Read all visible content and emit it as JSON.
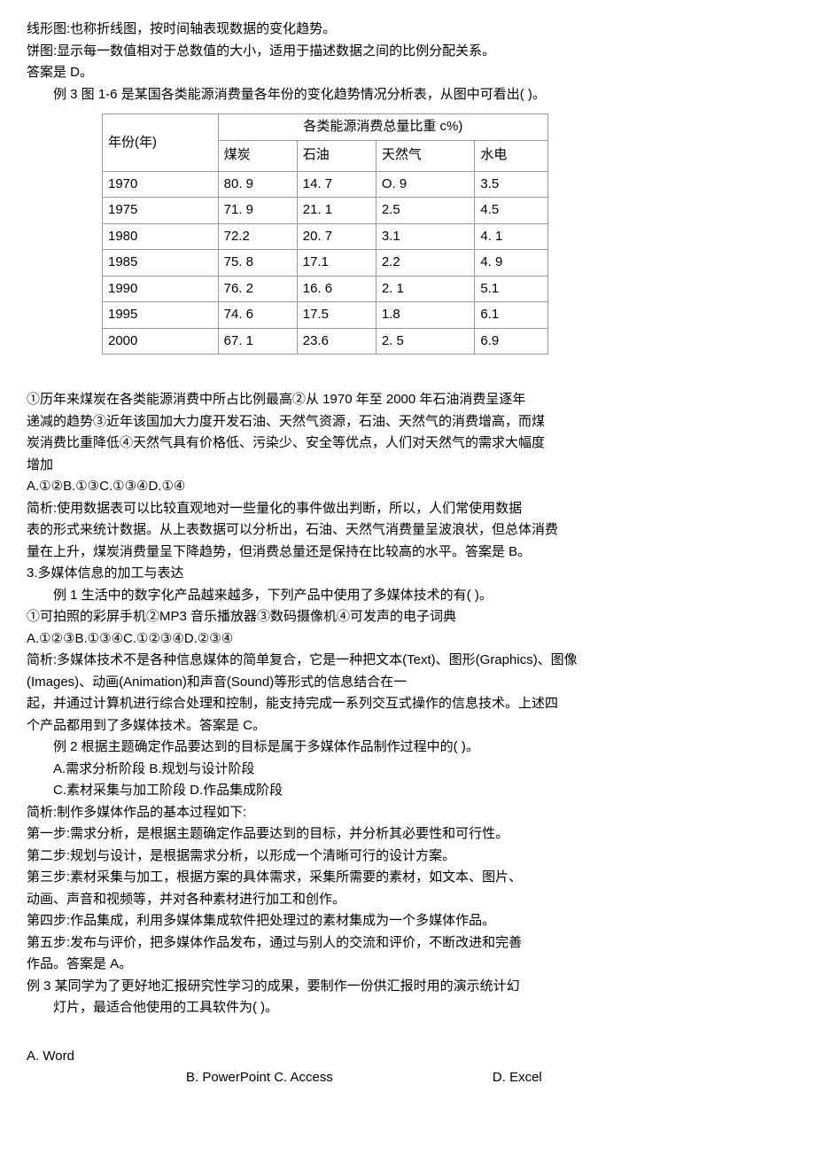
{
  "intro": {
    "line1": "线形图:也称折线图，按时间轴表现数据的变化趋势。",
    "line2": "饼图:显示每一数值相对于总数值的大小，适用于描述数据之间的比例分配关系。",
    "line3": "答案是 D。",
    "example3": "例 3 图 1-6 是某国各类能源消费量各年份的变化趋势情况分析表，从图中可看出(    )。"
  },
  "table": {
    "col1_header": "年份(年)",
    "merged_header": "各类能源消费总量比重 c%)",
    "subheaders": [
      "煤炭",
      "石油",
      "天然气",
      "水电"
    ],
    "rows": [
      {
        "year": "1970",
        "coal": "80. 9",
        "oil": "14. 7",
        "gas": "O. 9",
        "hydro": "3.5"
      },
      {
        "year": "1975",
        "coal": "71. 9",
        "oil": "21. 1",
        "gas": "2.5",
        "hydro": "4.5"
      },
      {
        "year": "1980",
        "coal": "72.2",
        "oil": "20. 7",
        "gas": "3.1",
        "hydro": "4. 1"
      },
      {
        "year": "1985",
        "coal": "75. 8",
        "oil": "17.1",
        "gas": "2.2",
        "hydro": "4. 9"
      },
      {
        "year": "1990",
        "coal": "76. 2",
        "oil": "16. 6",
        "gas": "2. 1",
        "hydro": "5.1"
      },
      {
        "year": "1995",
        "coal": "74. 6",
        "oil": "17.5",
        "gas": "1.8",
        "hydro": "6.1"
      },
      {
        "year": "2000",
        "coal": "67. 1",
        "oil": "23.6",
        "gas": "2. 5",
        "hydro": "6.9"
      }
    ]
  },
  "analysis1": {
    "line1": "①历年来煤炭在各类能源消费中所占比例最高②从 1970 年至 2000 年石油消费呈逐年",
    "line2": "递减的趋势③近年该国加大力度开发石油、天然气资源，石油、天然气的消费增高，而煤",
    "line3": "炭消费比重降低④天然气具有价格低、污染少、安全等优点，人们对天然气的需求大幅度",
    "line4": "增加",
    "options": "A.①②B.①③C.①③④D.①④",
    "exp1": "简析:使用数据表可以比较直观地对一些量化的事件做出判断，所以，人们常使用数据",
    "exp2": "表的形式来统计数据。从上表数据可以分析出，石油、天然气消费量呈波浪状，但总体消费",
    "exp3": "量在上升，煤炭消费量呈下降趋势，但消费总量还是保持在比较高的水平。答案是 B。"
  },
  "section3": {
    "title": "3.多媒体信息的加工与表达",
    "ex1": "例 1 生活中的数字化产品越来越多，下列产品中使用了多媒体技术的有(   )。",
    "ex1_items": "①可拍照的彩屏手机②MP3 音乐播放器③数码摄像机④可发声的电子词典",
    "ex1_opts": "A.①②③B.①③④C.①②③④D.②③④",
    "ex1_exp1": "简析:多媒体技术不是各种信息媒体的简单复合，它是一种把文本(Text)、图形(Graphics)、图像",
    "ex1_exp2": "(Images)、动画(Animation)和声音(Sound)等形式的信息结合在一",
    "ex1_exp3": "起，并通过计算机进行综合处理和控制，能支持完成一系列交互式操作的信息技术。上述四",
    "ex1_exp4": "个产品都用到了多媒体技术。答案是 C。",
    "ex2": "例 2 根据主题确定作品要达到的目标是属于多媒体作品制作过程中的(      )。",
    "ex2_optAB": "A.需求分析阶段     B.规划与设计阶段",
    "ex2_optCD": "C.素材采集与加工阶段       D.作品集成阶段",
    "ex2_exp_title": "简析:制作多媒体作品的基本过程如下:",
    "step1": "第一步:需求分析，是根据主题确定作品要达到的目标，并分析其必要性和可行性。",
    "step2": "第二步:规划与设计，是根据需求分析，以形成一个清晰可行的设计方案。",
    "step3": "第三步:素材采集与加工，根据方案的具体需求，采集所需要的素材，如文本、图片、",
    "step3b": "动画、声音和视频等，并对各种素材进行加工和创作。",
    "step4": "第四步:作品集成，利用多媒体集成软件把处理过的素材集成为一个多媒体作品。",
    "step5": "第五步:发布与评价，把多媒体作品发布，通过与别人的交流和评价，不断改进和完善",
    "step5b": "作品。答案是 A。",
    "ex3_line1": "例 3 某同学为了更好地汇报研究性学习的成果，要制作一份供汇报时用的演示统计幻",
    "ex3_line2": "灯片，最适合他使用的工具软件为(   )。",
    "optA": "A. Word",
    "optBC": "B. PowerPoint C. Access",
    "optD": "D. Excel"
  }
}
